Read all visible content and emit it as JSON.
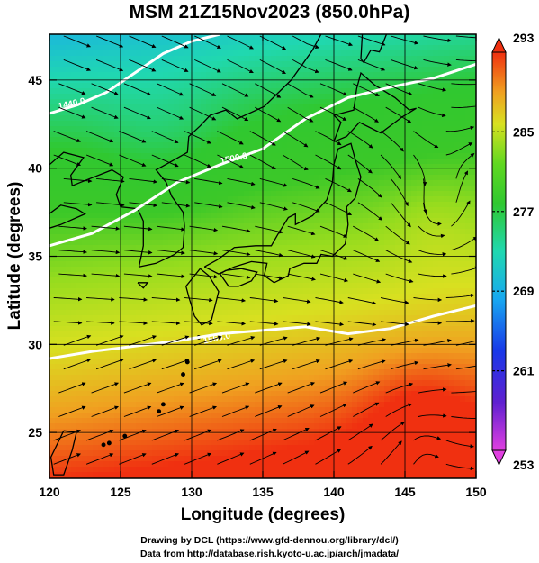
{
  "title": "MSM 21Z15Nov2023 (850.0hPa)",
  "credits": {
    "line1": "Drawing by DCL (https://www.gfd-dennou.org/library/dcl/)",
    "line2": "Data from http://database.rish.kyoto-u.ac.jp/arch/jmadata/"
  },
  "chart_data": {
    "type": "heatmap",
    "title": "MSM 21Z15Nov2023 (850.0hPa)",
    "xlabel": "Longitude (degrees)",
    "ylabel": "Latitude  (degrees)",
    "xlim": [
      120,
      150
    ],
    "ylim": [
      22.4,
      47.6
    ],
    "xticks": [
      "120",
      "125",
      "130",
      "135",
      "140",
      "145",
      "150"
    ],
    "yticks": [
      "25",
      "30",
      "35",
      "40",
      "45"
    ],
    "grid": true,
    "colorbar": {
      "labels": [
        "293",
        "285",
        "277",
        "269",
        "261",
        "253"
      ],
      "range": [
        253,
        293
      ]
    },
    "contours": [
      {
        "label": "1560.0"
      },
      {
        "label": "1500.0"
      },
      {
        "label": "1440.0"
      }
    ],
    "overlays": [
      "streamlines",
      "coastlines"
    ]
  },
  "colors": {
    "frame": "#000000",
    "contour": "#ffffff"
  }
}
